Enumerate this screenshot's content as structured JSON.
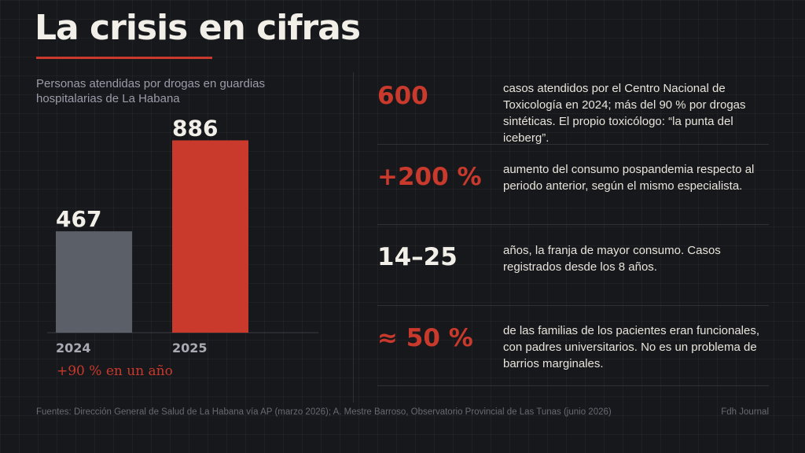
{
  "header": {
    "title": "La crisis en cifras"
  },
  "colors": {
    "accent": "#c9392c",
    "bar_2024": "#5b5f67",
    "bar_2025": "#c9392c",
    "stat_white": "#f2efe8"
  },
  "chart_data": {
    "type": "bar",
    "subtitle": "Personas atendidas por drogas en guardias hospitalarias de La Habana",
    "categories": [
      "2024",
      "2025"
    ],
    "values": [
      467,
      886
    ],
    "data_labels": [
      "467",
      "886"
    ],
    "ylim": [
      0,
      1000
    ],
    "grid": false,
    "note": "+90 % en un año"
  },
  "stats": [
    {
      "value": "600",
      "color": "accent",
      "text": "casos atendidos por el Centro Nacional de Toxicología en 2024; más del 90 % por drogas sintéticas. El propio toxicólogo: “la punta del iceberg”."
    },
    {
      "value": "+200 %",
      "color": "accent",
      "text": "aumento del consumo pospandemia respecto al periodo anterior, según el mismo especialista."
    },
    {
      "value": "14–25",
      "color": "white",
      "text": "años, la franja de mayor consumo. Casos registrados desde los 8 años."
    },
    {
      "value": "≈ 50 %",
      "color": "accent",
      "text": "de las familias de los pacientes eran funcionales, con padres universitarios. No es un problema de barrios marginales."
    }
  ],
  "footer": {
    "sources": "Fuentes: Dirección General de Salud de La Habana vía AP (marzo 2026); A. Mestre Barroso, Observatorio Provincial de Las Tunas (junio 2026)",
    "brand": "Fdh Journal"
  }
}
